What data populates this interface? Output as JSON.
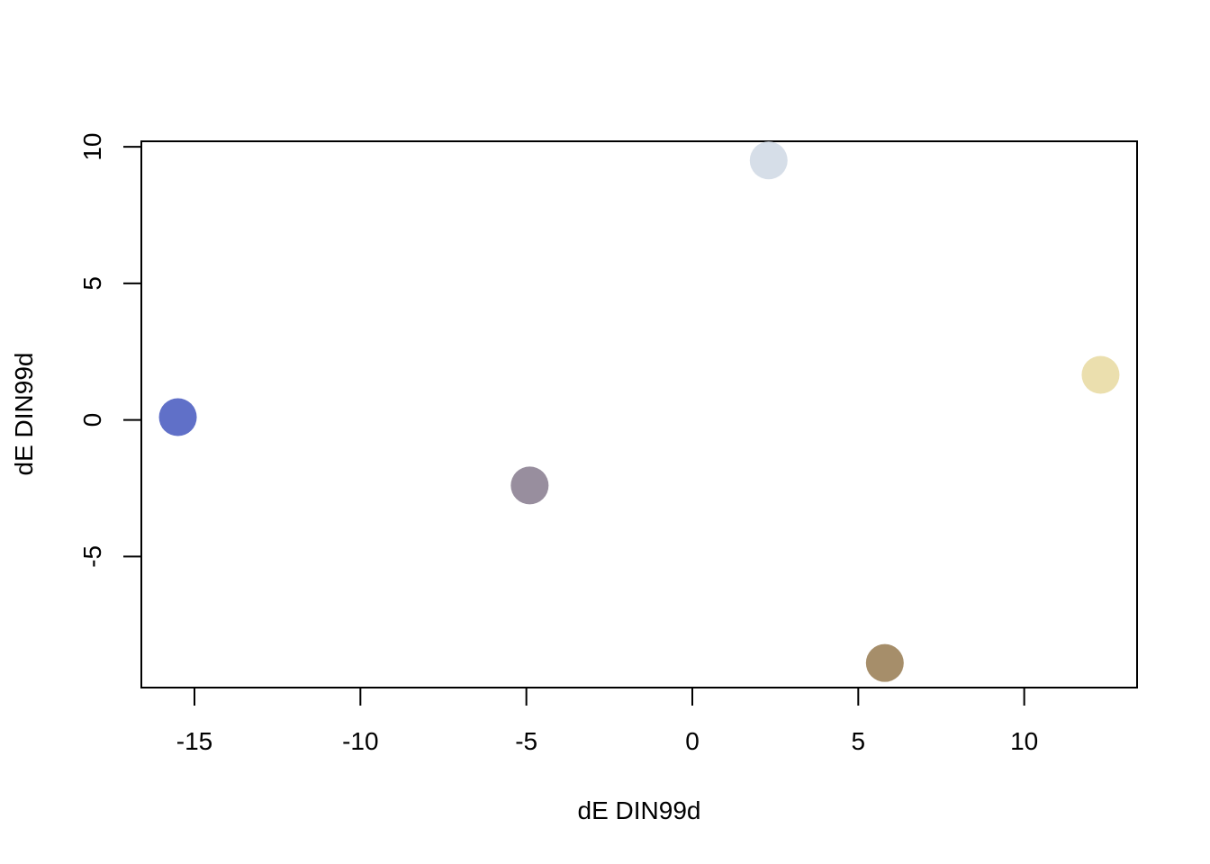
{
  "chart_data": {
    "type": "scatter",
    "xlabel": "dE DIN99d",
    "ylabel": "dE DIN99d",
    "xlim": [
      -16.6,
      13.4
    ],
    "ylim": [
      -9.8,
      10.2
    ],
    "x_ticks": [
      -15,
      -10,
      -5,
      0,
      5,
      10
    ],
    "x_tick_labels": [
      "-15",
      "-10",
      "-5",
      "0",
      "5",
      "10"
    ],
    "y_ticks": [
      -5,
      0,
      5,
      10
    ],
    "y_tick_labels": [
      "-5",
      "0",
      "5",
      "10"
    ],
    "grid": false,
    "legend": "none",
    "points": [
      {
        "x": -15.5,
        "y": 0.1,
        "color": "#6070C8"
      },
      {
        "x": -4.9,
        "y": -2.4,
        "color": "#988E9E"
      },
      {
        "x": 2.3,
        "y": 9.5,
        "color": "#D6DEE8"
      },
      {
        "x": 5.8,
        "y": -8.9,
        "color": "#A68E6A"
      },
      {
        "x": 12.3,
        "y": 1.65,
        "color": "#EBDFAE"
      }
    ]
  }
}
